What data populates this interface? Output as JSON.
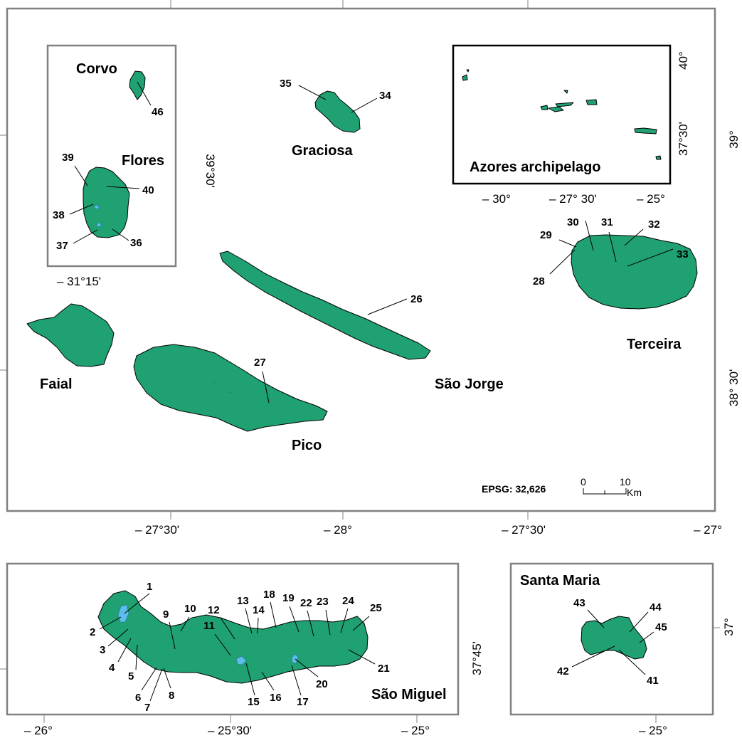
{
  "map": {
    "main_panel": {
      "islands": {
        "graciosa": "Graciosa",
        "flores": "Flores",
        "corvo": "Corvo",
        "terceira": "Terceira",
        "sao_jorge": "São Jorge",
        "faial": "Faial",
        "pico": "Pico"
      },
      "inset_title": "Azores archipelago",
      "inset_x_ticks": [
        "– 30°",
        "– 27° 30'",
        "– 25°"
      ],
      "inset_y_ticks": [
        "40°",
        "37°30'"
      ],
      "flores_inset_y_tick": "39°30'",
      "flores_inset_x_tick": "– 31°15'",
      "x_ticks": [
        "– 27°30'",
        "– 28°",
        "– 27°30'",
        "– 27°"
      ],
      "y_ticks": [
        "39°",
        "38° 30'"
      ],
      "epsg": "EPSG: 32,626",
      "scale": {
        "zero": "0",
        "ten": "10",
        "unit": "Km"
      }
    },
    "sao_miguel_panel": {
      "name": "São Miguel",
      "x_ticks": [
        "– 26°",
        "– 25°30'",
        "– 25°"
      ],
      "y_tick": "37°45'"
    },
    "santa_maria_panel": {
      "name": "Santa Maria",
      "x_tick": "– 25°",
      "y_tick": "37°"
    },
    "site_numbers": [
      "1",
      "2",
      "3",
      "4",
      "5",
      "6",
      "7",
      "8",
      "9",
      "10",
      "11",
      "12",
      "13",
      "14",
      "15",
      "16",
      "17",
      "18",
      "19",
      "20",
      "21",
      "22",
      "23",
      "24",
      "25",
      "26",
      "27",
      "28",
      "29",
      "30",
      "31",
      "32",
      "33",
      "34",
      "35",
      "36",
      "37",
      "38",
      "39",
      "40",
      "41",
      "42",
      "43",
      "44",
      "45",
      "46"
    ],
    "colors": {
      "land": "#1fa172",
      "lake": "#5bbde8",
      "frame": "#808080"
    }
  }
}
